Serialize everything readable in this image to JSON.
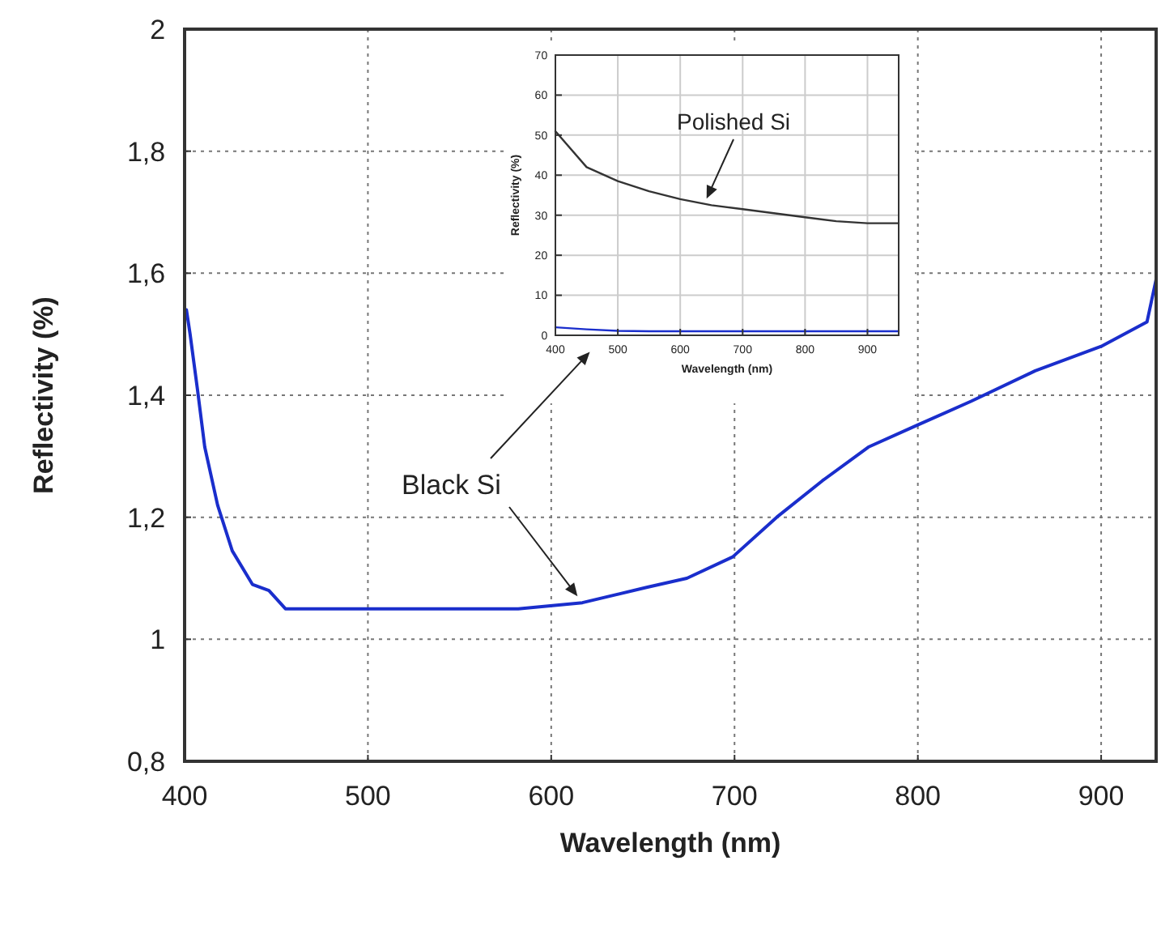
{
  "chart_data": [
    {
      "type": "line",
      "xlabel": "Wavelength (nm)",
      "ylabel": "Reflectivity (%)",
      "xlim": [
        400,
        930
      ],
      "ylim": [
        0.8,
        2
      ],
      "xticks": [
        400,
        500,
        600,
        700,
        800,
        900
      ],
      "yticks": [
        {
          "value": 0.8,
          "label": "0,8"
        },
        1,
        {
          "value": 1.2,
          "label": "1,2"
        },
        {
          "value": 1.4,
          "label": "1,4"
        },
        {
          "value": 1.6,
          "label": "1,6"
        },
        {
          "value": 1.8,
          "label": "1,8"
        },
        2
      ],
      "grid": true,
      "marker": "none",
      "line_style": "solid",
      "series": [
        {
          "name": "Black Si",
          "color": "#1a2ecc",
          "x": [
            401,
            403,
            407,
            411,
            418,
            426,
            437,
            446,
            455,
            476,
            529,
            582,
            617,
            652,
            674,
            699,
            723,
            748,
            773,
            799,
            829,
            864,
            900,
            925,
            930
          ],
          "values": [
            1.54,
            1.5,
            1.41,
            1.315,
            1.22,
            1.145,
            1.09,
            1.08,
            1.05,
            1.05,
            1.05,
            1.05,
            1.06,
            1.085,
            1.1,
            1.135,
            1.2,
            1.26,
            1.315,
            1.35,
            1.39,
            1.44,
            1.48,
            1.52,
            1.59
          ]
        }
      ]
    },
    {
      "type": "line",
      "xlabel": "Wavelength (nm)",
      "ylabel": "Reflectivity (%)",
      "xlim": [
        400,
        950
      ],
      "ylim": [
        0,
        70
      ],
      "xticks": [
        400,
        500,
        600,
        700,
        800,
        900
      ],
      "yticks": [
        0,
        10,
        20,
        30,
        40,
        50,
        60,
        70
      ],
      "grid": true,
      "marker": "none",
      "line_style": "solid",
      "series": [
        {
          "name": "Polished Si",
          "color": "#333333",
          "x": [
            400,
            450,
            500,
            550,
            600,
            650,
            700,
            750,
            800,
            850,
            900,
            950
          ],
          "values": [
            51,
            42,
            38.5,
            36,
            34,
            32.5,
            31.5,
            30.5,
            29.5,
            28.5,
            28,
            28
          ]
        },
        {
          "color": "#1a2ecc",
          "x": [
            400,
            450,
            500,
            550,
            600,
            650,
            700,
            750,
            800,
            850,
            900,
            950
          ],
          "values": [
            2,
            1.5,
            1.1,
            1,
            1,
            1,
            1,
            1,
            1,
            1,
            1,
            1
          ]
        }
      ]
    }
  ]
}
